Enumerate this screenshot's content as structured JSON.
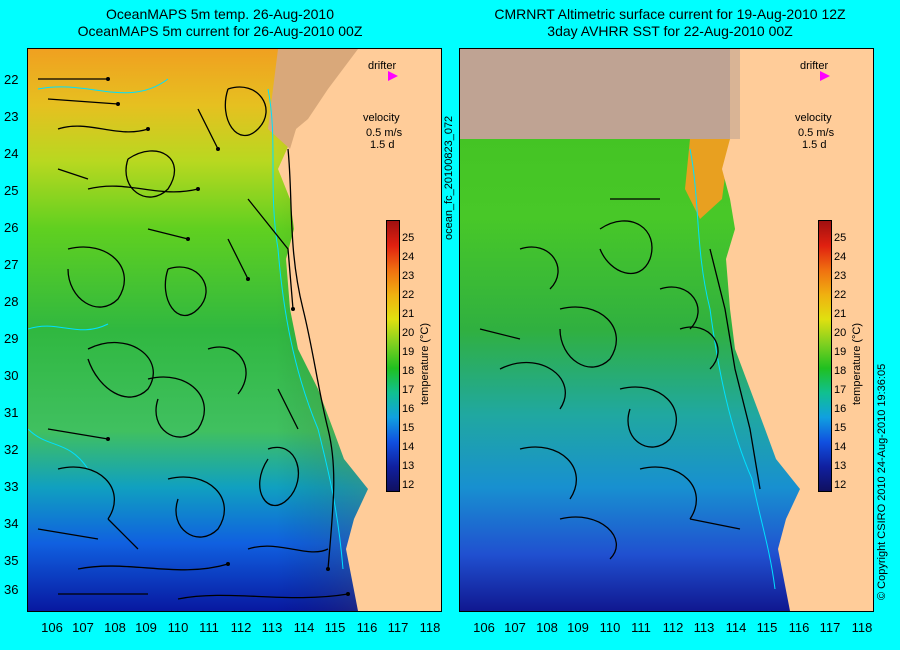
{
  "left_panel": {
    "title_line1": "OceanMAPS 5m temp. 26-Aug-2010",
    "title_line2": "OceanMAPS 5m current for 26-Aug-2010 00Z"
  },
  "right_panel": {
    "title_line1": "CMRNRT Altimetric surface current for 19-Aug-2010 12Z",
    "title_line2": "3day AVHRR SST for 22-Aug-2010 00Z"
  },
  "map": {
    "lat_labels": [
      "22",
      "23",
      "24",
      "25",
      "26",
      "27",
      "28",
      "29",
      "30",
      "31",
      "32",
      "33",
      "34",
      "35",
      "36"
    ],
    "lon_labels": [
      "106",
      "107",
      "108",
      "109",
      "110",
      "111",
      "112",
      "113",
      "114",
      "115",
      "116",
      "117",
      "118"
    ]
  },
  "legend": {
    "drifter_label": "drifter",
    "velocity_label": "velocity",
    "velocity_scale": "0.5 m/s",
    "velocity_duration": "1.5 d"
  },
  "colorbar": {
    "title": "temperature (°C)",
    "ticks": [
      "25",
      "24",
      "23",
      "22",
      "21",
      "20",
      "19",
      "18",
      "17",
      "16",
      "15",
      "14",
      "13",
      "12"
    ]
  },
  "side_text": {
    "run_id": "ocean_fc_20100823_072",
    "copyright": "© Copyright CSIRO 2010   24-Aug-2010 19:36:05"
  },
  "colors": {
    "background": "#00ffff",
    "land": "#ffcc99",
    "land_dark": "#bfa393",
    "drifter_marker": "#ff00ff"
  }
}
